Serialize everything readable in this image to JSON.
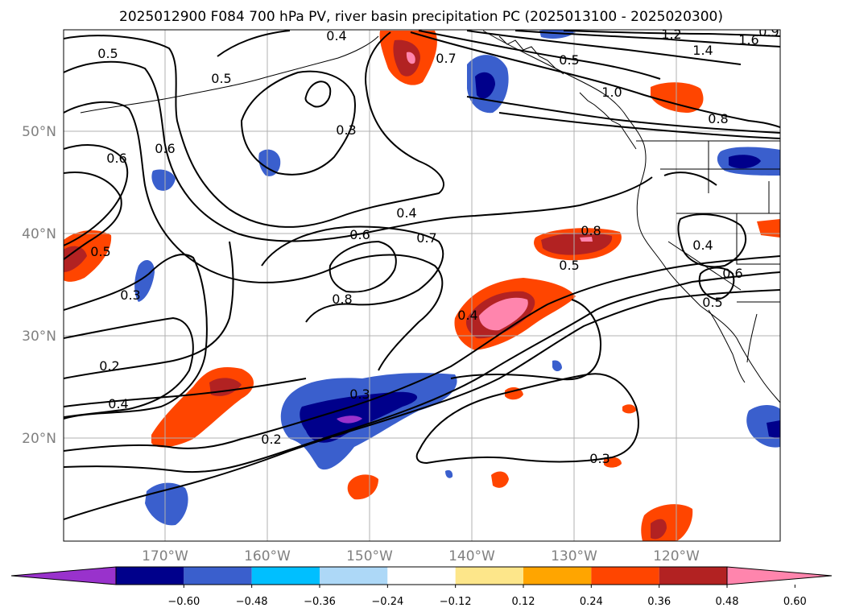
{
  "title": "2025012900 F084 700 hPa PV, river basin precipitation PC (2025013100 - 2025020300)",
  "lat_labels": [
    "50°N",
    "40°N",
    "30°N",
    "20°N"
  ],
  "lon_labels": [
    "170°W",
    "160°W",
    "150°W",
    "140°W",
    "130°W",
    "120°W"
  ],
  "colorbar": {
    "colors": [
      "#9932cc",
      "#00008b",
      "#3a5fcd",
      "#00bfff",
      "#add8f7",
      "#ffffff",
      "#fde68a",
      "#ffa500",
      "#ff4500",
      "#b22222",
      "#ff85ad"
    ],
    "ticks": [
      "−0.60",
      "−0.48",
      "−0.36",
      "−0.24",
      "−0.12",
      "0.12",
      "0.24",
      "0.36",
      "0.48",
      "0.60"
    ]
  },
  "contour_labels": [
    "0.5",
    "0.7",
    "1.2",
    "1.4",
    "1.6",
    "1.0",
    "0.8",
    "0.4",
    "0.3",
    "0.6",
    "0.6",
    "0.5",
    "0.4",
    "0.6",
    "0.7",
    "0.8",
    "0.5",
    "0.8",
    "0.4",
    "0.5",
    "0.6",
    "0.5",
    "0.3",
    "0.2",
    "0.4",
    "0.3",
    "0.2",
    "0.4",
    "0.3",
    "0.5",
    "0.9"
  ]
}
